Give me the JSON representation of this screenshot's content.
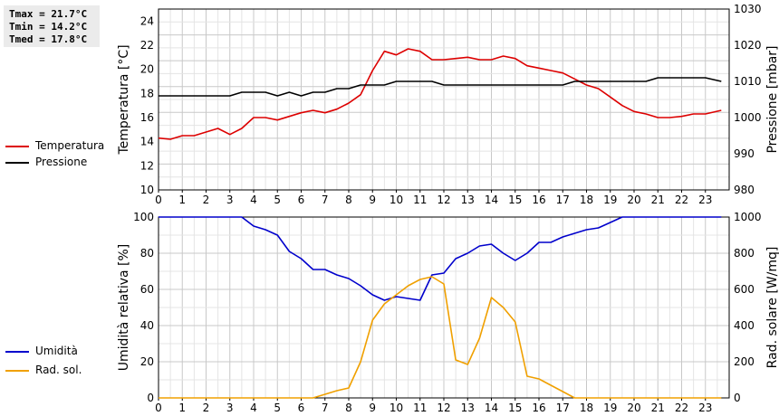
{
  "stats": {
    "tmax": "Tmax = 21.7°C",
    "tmin": "Tmin = 14.2°C",
    "tmed": "Tmed = 17.8°C"
  },
  "legend_top": [
    {
      "label": "Temperatura",
      "color": "#dd0000"
    },
    {
      "label": "Pressione",
      "color": "#000000"
    }
  ],
  "legend_bottom": [
    {
      "label": "Umidità",
      "color": "#0000cc"
    },
    {
      "label": "Rad. sol.",
      "color": "#f0a000"
    }
  ],
  "chart_data": [
    {
      "type": "line",
      "ylabel": "Temperatura [°C]",
      "y2label": "Pressione [mbar]",
      "xlim": [
        0,
        24
      ],
      "ylim": [
        10,
        25
      ],
      "y2lim": [
        980,
        1030
      ],
      "x_ticks": [
        "0",
        "1",
        "2",
        "3",
        "4",
        "5",
        "6",
        "7",
        "8",
        "9",
        "10",
        "11",
        "12",
        "13",
        "14",
        "15",
        "16",
        "17",
        "18",
        "19",
        "20",
        "21",
        "22",
        "23"
      ],
      "y_ticks": [
        "10",
        "12",
        "14",
        "16",
        "18",
        "20",
        "22",
        "24"
      ],
      "y2_ticks": [
        "980",
        "990",
        "1000",
        "1010",
        "1020",
        "1030"
      ],
      "grid": true,
      "series": [
        {
          "name": "Temperatura",
          "axis": "left",
          "color": "#dd0000",
          "x": [
            0,
            0.5,
            1,
            1.5,
            2,
            2.5,
            3,
            3.5,
            4,
            4.5,
            5,
            5.5,
            6,
            6.5,
            7,
            7.5,
            8,
            8.5,
            9,
            9.5,
            10,
            10.5,
            11,
            11.5,
            12,
            12.5,
            13,
            13.5,
            14,
            14.5,
            15,
            15.5,
            16,
            16.5,
            17,
            17.5,
            18,
            18.5,
            19,
            19.5,
            20,
            20.5,
            21,
            21.5,
            22,
            22.5,
            23,
            23.67
          ],
          "values": [
            14.3,
            14.2,
            14.5,
            14.5,
            14.8,
            15.1,
            14.6,
            15.1,
            16.0,
            16.0,
            15.8,
            16.1,
            16.4,
            16.6,
            16.4,
            16.7,
            17.2,
            17.9,
            19.9,
            21.5,
            21.2,
            21.7,
            21.5,
            20.8,
            20.8,
            20.9,
            21.0,
            20.8,
            20.8,
            21.1,
            20.9,
            20.3,
            20.1,
            19.9,
            19.7,
            19.2,
            18.7,
            18.4,
            17.7,
            17.0,
            16.5,
            16.3,
            16.0,
            16.0,
            16.1,
            16.3,
            16.3,
            16.6
          ]
        },
        {
          "name": "Pressione",
          "axis": "right",
          "color": "#000000",
          "x": [
            0,
            0.5,
            1,
            1.5,
            2,
            2.5,
            3,
            3.5,
            4,
            4.5,
            5,
            5.5,
            6,
            6.5,
            7,
            7.5,
            8,
            8.5,
            9,
            9.5,
            10,
            10.5,
            11,
            11.5,
            12,
            12.5,
            13,
            13.5,
            14,
            14.5,
            15,
            15.5,
            16,
            16.5,
            17,
            17.5,
            18,
            18.5,
            19,
            19.5,
            20,
            20.5,
            21,
            21.5,
            22,
            22.5,
            23,
            23.67
          ],
          "values": [
            1006,
            1006,
            1006,
            1006,
            1006,
            1006,
            1006,
            1007,
            1007,
            1007,
            1006,
            1007,
            1006,
            1007,
            1007,
            1008,
            1008,
            1009,
            1009,
            1009,
            1010,
            1010,
            1010,
            1010,
            1009,
            1009,
            1009,
            1009,
            1009,
            1009,
            1009,
            1009,
            1009,
            1009,
            1009,
            1010,
            1010,
            1010,
            1010,
            1010,
            1010,
            1010,
            1011,
            1011,
            1011,
            1011,
            1011,
            1010
          ]
        }
      ]
    },
    {
      "type": "line",
      "ylabel": "Umidità relativa [%]",
      "y2label": "Rad. solare [W/mq]",
      "xlim": [
        0,
        24
      ],
      "ylim": [
        0,
        100
      ],
      "y2lim": [
        0,
        1000
      ],
      "x_ticks": [
        "0",
        "1",
        "2",
        "3",
        "4",
        "5",
        "6",
        "7",
        "8",
        "9",
        "10",
        "11",
        "12",
        "13",
        "14",
        "15",
        "16",
        "17",
        "18",
        "19",
        "20",
        "21",
        "22",
        "23"
      ],
      "y_ticks": [
        "0",
        "20",
        "40",
        "60",
        "80",
        "100"
      ],
      "y2_ticks": [
        "0",
        "200",
        "400",
        "600",
        "800",
        "1000"
      ],
      "grid": true,
      "series": [
        {
          "name": "Umidità",
          "axis": "left",
          "color": "#0000cc",
          "x": [
            0,
            0.5,
            1,
            1.5,
            2,
            2.5,
            3,
            3.5,
            4,
            4.5,
            5,
            5.5,
            6,
            6.5,
            7,
            7.5,
            8,
            8.5,
            9,
            9.5,
            10,
            10.5,
            11,
            11.5,
            12,
            12.5,
            13,
            13.5,
            14,
            14.5,
            15,
            15.5,
            16,
            16.5,
            17,
            17.5,
            18,
            18.5,
            19,
            19.5,
            20,
            20.5,
            21,
            21.5,
            22,
            22.5,
            23,
            23.67
          ],
          "values": [
            100,
            100,
            100,
            100,
            100,
            100,
            100,
            100,
            95,
            93,
            90,
            81,
            77,
            71,
            71,
            68,
            66,
            62,
            57,
            54,
            56,
            55,
            54,
            68,
            69,
            77,
            80,
            84,
            85,
            80,
            76,
            80,
            86,
            86,
            89,
            91,
            93,
            94,
            97,
            100,
            100,
            100,
            100,
            100,
            100,
            100,
            100,
            100
          ]
        },
        {
          "name": "Rad. sol.",
          "axis": "right",
          "color": "#f0a000",
          "x": [
            0,
            0.5,
            1,
            1.5,
            2,
            2.5,
            3,
            3.5,
            4,
            4.5,
            5,
            5.5,
            6,
            6.5,
            7,
            7.5,
            8,
            8.5,
            9,
            9.5,
            10,
            10.5,
            11,
            11.5,
            12,
            12.5,
            13,
            13.5,
            14,
            14.5,
            15,
            15.5,
            16,
            16.5,
            17,
            17.5,
            18,
            18.5,
            19,
            19.5,
            20,
            20.5,
            21,
            21.5,
            22,
            22.5,
            23,
            23.67
          ],
          "values": [
            0,
            0,
            0,
            0,
            0,
            0,
            0,
            0,
            0,
            0,
            0,
            0,
            0,
            0,
            20,
            40,
            55,
            200,
            430,
            520,
            570,
            620,
            655,
            670,
            630,
            210,
            185,
            330,
            555,
            500,
            420,
            120,
            105,
            70,
            35,
            0,
            0,
            0,
            0,
            0,
            0,
            0,
            0,
            0,
            0,
            0,
            0,
            0
          ]
        }
      ]
    }
  ]
}
